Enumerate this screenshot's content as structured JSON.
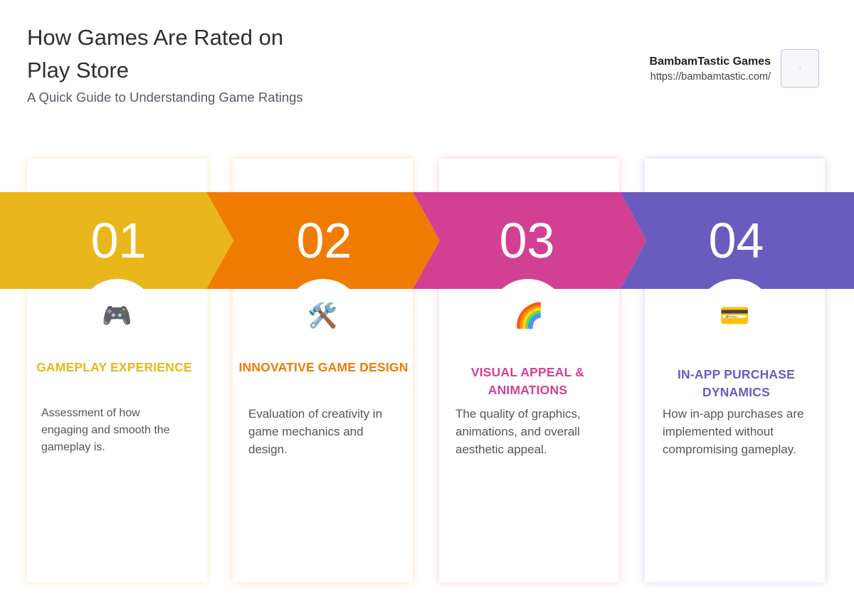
{
  "header": {
    "title": "How Games Are Rated on Play Store",
    "subtitle": "A Quick Guide to Understanding Game Ratings"
  },
  "brand": {
    "name": "BambamTastic Games",
    "url": "https://bambamtastic.com/"
  },
  "steps": [
    {
      "number": "01",
      "icon": "🎮",
      "icon_name": "game-controller-icon",
      "heading": "GAMEPLAY EXPERIENCE",
      "description": "Assessment of how engaging and smooth the gameplay is.",
      "color": "#e9b71b"
    },
    {
      "number": "02",
      "icon": "🛠️",
      "icon_name": "tools-icon",
      "heading": "INNOVATIVE GAME DESIGN",
      "description": "Evaluation of creativity in game mechanics and design.",
      "color": "#ef7c00"
    },
    {
      "number": "03",
      "icon": "🌈",
      "icon_name": "rainbow-icon",
      "heading": "VISUAL APPEAL & ANIMATIONS",
      "description": "The quality of graphics, animations, and overall aesthetic appeal.",
      "color": "#d24094"
    },
    {
      "number": "04",
      "icon": "💳",
      "icon_name": "credit-card-icon",
      "heading": "IN-APP PURCHASE DYNAMICS",
      "description": "How in-app purchases are implemented without compromising gameplay.",
      "color": "#6a5cbe"
    }
  ]
}
